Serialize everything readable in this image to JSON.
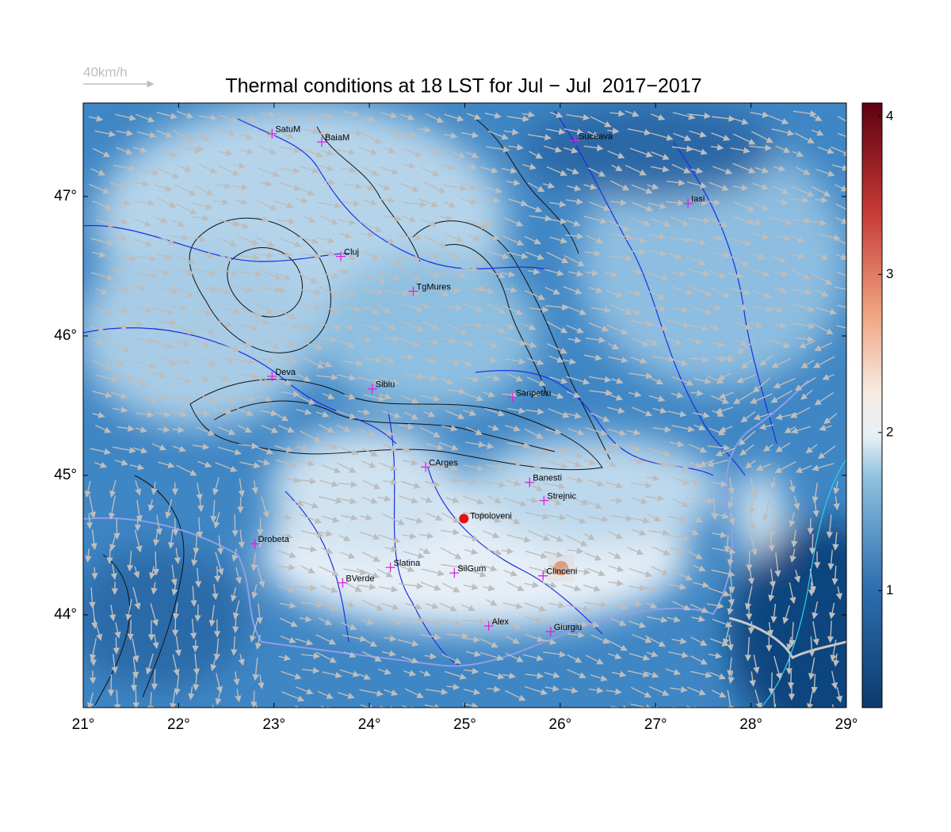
{
  "chart_data": {
    "type": "map",
    "title": "Thermal conditions at 18 LST for Jul − Jul  2017−2017",
    "wind_legend": "40km/h",
    "xlim": [
      21,
      29
    ],
    "ylim": [
      43.335,
      47.67
    ],
    "xticks": [
      {
        "value": 21,
        "label": "21°"
      },
      {
        "value": 22,
        "label": "22°"
      },
      {
        "value": 23,
        "label": "23°"
      },
      {
        "value": 24,
        "label": "24°"
      },
      {
        "value": 25,
        "label": "25°"
      },
      {
        "value": 26,
        "label": "26°"
      },
      {
        "value": 27,
        "label": "27°"
      },
      {
        "value": 28,
        "label": "28°"
      },
      {
        "value": 29,
        "label": "29°"
      }
    ],
    "yticks": [
      {
        "value": 44,
        "label": "44°"
      },
      {
        "value": 45,
        "label": "45°"
      },
      {
        "value": 46,
        "label": "46°"
      },
      {
        "value": 47,
        "label": "47°"
      }
    ],
    "clim": [
      0.26,
      4.085
    ],
    "cticks": [
      1,
      2,
      3,
      4
    ],
    "marker_color": "#e020e0",
    "cities": [
      {
        "name": "SatuM",
        "lon": 22.98,
        "lat": 47.45
      },
      {
        "name": "BaiaM",
        "lon": 23.5,
        "lat": 47.39
      },
      {
        "name": "Suceava",
        "lon": 26.16,
        "lat": 47.4
      },
      {
        "name": "Iasi",
        "lon": 27.34,
        "lat": 46.95
      },
      {
        "name": "Cluj",
        "lon": 23.7,
        "lat": 46.57
      },
      {
        "name": "TgMures",
        "lon": 24.46,
        "lat": 46.32
      },
      {
        "name": "Deva",
        "lon": 22.98,
        "lat": 45.71
      },
      {
        "name": "Sibiu",
        "lon": 24.03,
        "lat": 45.62
      },
      {
        "name": "Sanpetru",
        "lon": 25.5,
        "lat": 45.56
      },
      {
        "name": "CArges",
        "lon": 24.59,
        "lat": 45.06
      },
      {
        "name": "Banesti",
        "lon": 25.68,
        "lat": 44.95
      },
      {
        "name": "Strejnic",
        "lon": 25.83,
        "lat": 44.82
      },
      {
        "name": "Drobeta",
        "lon": 22.8,
        "lat": 44.51
      },
      {
        "name": "Slatina",
        "lon": 24.22,
        "lat": 44.34
      },
      {
        "name": "SilGum",
        "lon": 24.89,
        "lat": 44.3
      },
      {
        "name": "Clinceni",
        "lon": 25.82,
        "lat": 44.28
      },
      {
        "name": "BVerde",
        "lon": 23.72,
        "lat": 44.23
      },
      {
        "name": "Alex",
        "lon": 25.25,
        "lat": 43.92
      },
      {
        "name": "Giurgiu",
        "lon": 25.9,
        "lat": 43.88
      }
    ],
    "highlight": {
      "name": "Topoloveni",
      "lon": 24.99,
      "lat": 44.69,
      "color": "#e81010"
    }
  }
}
